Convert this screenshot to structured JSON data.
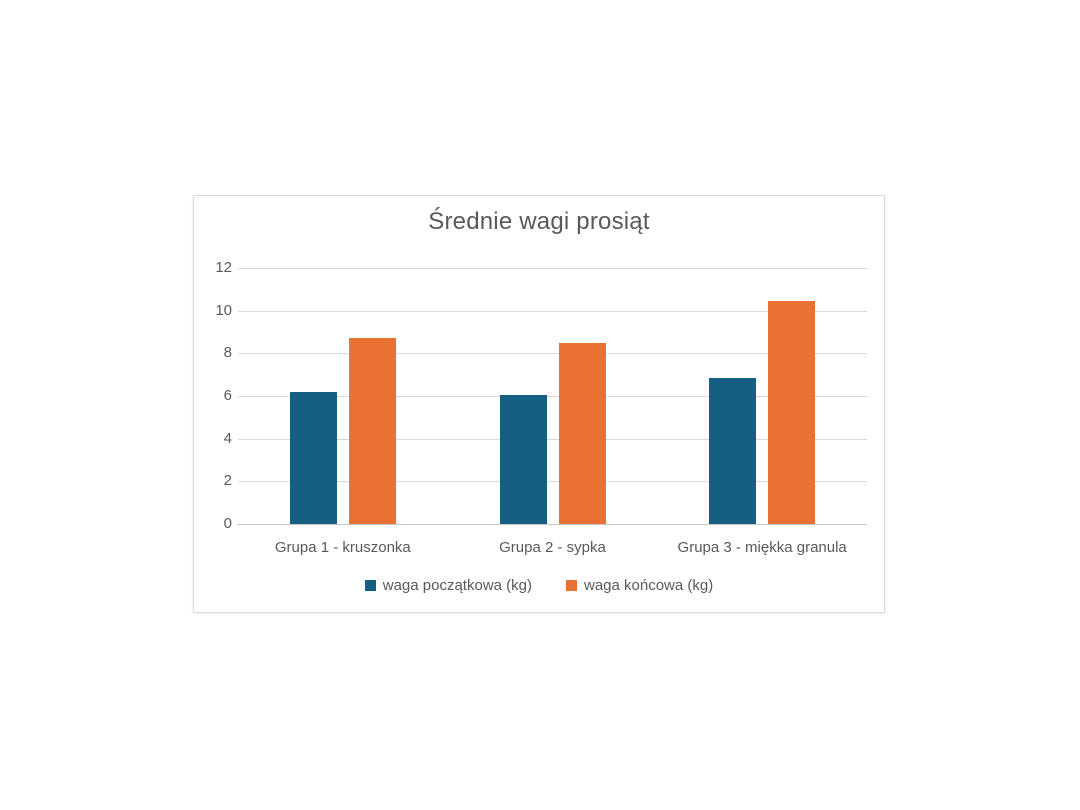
{
  "chart_data": {
    "type": "bar",
    "title": "Średnie wagi prosiąt",
    "categories": [
      "Grupa 1 - kruszonka",
      "Grupa 2 - sypka",
      "Grupa 3 - miękka granula"
    ],
    "series": [
      {
        "name": "waga początkowa (kg)",
        "color": "#156082",
        "values": [
          6.2,
          6.05,
          6.85
        ]
      },
      {
        "name": "waga końcowa (kg)",
        "color": "#E97132",
        "values": [
          8.7,
          8.5,
          10.45
        ]
      }
    ],
    "xlabel": "",
    "ylabel": "",
    "ylim": [
      0,
      12
    ],
    "yticks": [
      0,
      2,
      4,
      6,
      8,
      10,
      12
    ],
    "grid": true,
    "legend_position": "bottom"
  },
  "colors": {
    "series_1": "#156082",
    "series_2": "#E97132",
    "text": "#595959",
    "gridline": "#D9D9D9",
    "axis_baseline": "#C6C6C6",
    "panel_border": "#D9D9D9",
    "background": "#FFFFFF"
  }
}
